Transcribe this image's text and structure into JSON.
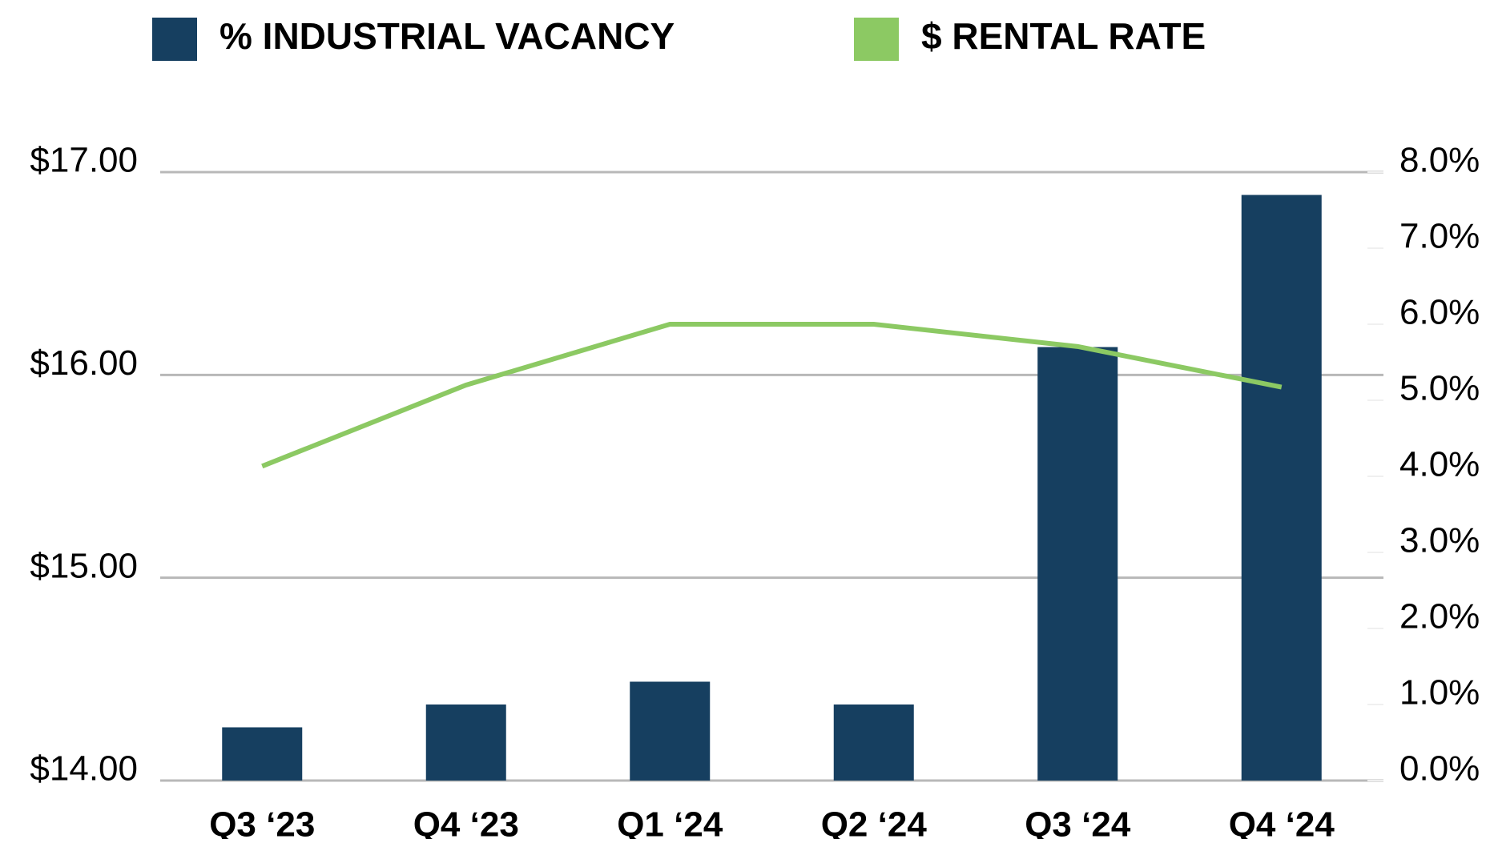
{
  "chart_data": {
    "type": "bar-line",
    "categories": [
      "Q3 ‘23",
      "Q4 ‘23",
      "Q1 ‘24",
      "Q2 ‘24",
      "Q3 ‘24",
      "Q4 ‘24"
    ],
    "series": [
      {
        "name": "% INDUSTRIAL VACANCY",
        "type": "bar",
        "axis": "y2",
        "color": "#163f60",
        "values": [
          0.7,
          1.0,
          1.3,
          1.0,
          5.7,
          7.7
        ]
      },
      {
        "name": "$ RENTAL RATE",
        "type": "line",
        "color": "#8cc963",
        "values": [
          15.55,
          15.95,
          16.25,
          16.25,
          16.14,
          15.94
        ]
      }
    ],
    "ylim": [
      14,
      17
    ],
    "yticks": [
      {
        "value": 14,
        "label": "$14.00"
      },
      {
        "value": 15,
        "label": "$15.00"
      },
      {
        "value": 16,
        "label": "$16.00"
      },
      {
        "value": 17,
        "label": "$17.00"
      }
    ],
    "y2lim": [
      0,
      8
    ],
    "y2ticks": [
      {
        "value": 0,
        "label": "0.0%"
      },
      {
        "value": 1,
        "label": "1.0%"
      },
      {
        "value": 2,
        "label": "2.0%"
      },
      {
        "value": 3,
        "label": "3.0%"
      },
      {
        "value": 4,
        "label": "4.0%"
      },
      {
        "value": 5,
        "label": "5.0%"
      },
      {
        "value": 6,
        "label": "6.0%"
      },
      {
        "value": 7,
        "label": "7.0%"
      },
      {
        "value": 8,
        "label": "8.0%"
      }
    ],
    "grid": true,
    "legend": "top"
  }
}
